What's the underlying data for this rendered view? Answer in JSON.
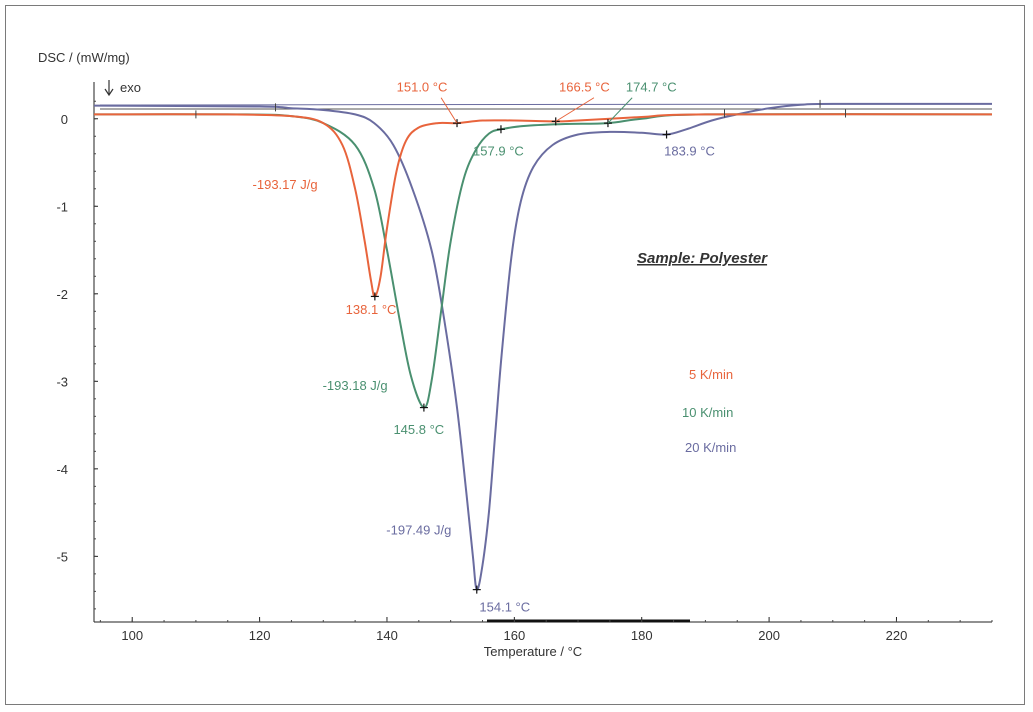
{
  "chart_data": {
    "type": "line",
    "ylabel": "DSC / (mW/mg)",
    "exo_label": "exo",
    "xlabel": "Temperature / °C",
    "xlim": [
      94,
      235
    ],
    "ylim": [
      -5.75,
      0.42
    ],
    "xticks": [
      100,
      120,
      140,
      160,
      180,
      200,
      220
    ],
    "yticks": [
      0,
      -1,
      -2,
      -3,
      -4,
      -5
    ],
    "grid": false,
    "sample_label": "Sample: Polyester",
    "legend": [
      {
        "label": "5 K/min",
        "color": "#e8643c"
      },
      {
        "label": "10 K/min",
        "color": "#4a9070"
      },
      {
        "label": "20 K/min",
        "color": "#6a6ca0"
      }
    ],
    "series": [
      {
        "name": "5 K/min",
        "color": "#e8643c",
        "points": [
          [
            94,
            0.05
          ],
          [
            115,
            0.05
          ],
          [
            125,
            0.03
          ],
          [
            130,
            -0.05
          ],
          [
            133,
            -0.3
          ],
          [
            135,
            -0.8
          ],
          [
            136.5,
            -1.4
          ],
          [
            137.5,
            -1.85
          ],
          [
            138.1,
            -2.03
          ],
          [
            139,
            -1.8
          ],
          [
            140,
            -1.25
          ],
          [
            141.5,
            -0.6
          ],
          [
            143,
            -0.25
          ],
          [
            145,
            -0.1
          ],
          [
            148,
            -0.05
          ],
          [
            151,
            -0.05
          ],
          [
            155,
            -0.02
          ],
          [
            160,
            -0.02
          ],
          [
            166.5,
            -0.03
          ],
          [
            170,
            -0.02
          ],
          [
            180,
            0.02
          ],
          [
            190,
            0.05
          ],
          [
            235,
            0.05
          ]
        ],
        "peak": {
          "x": 138.1,
          "y": -2.03
        },
        "marks": [
          [
            151.0,
            -0.05
          ],
          [
            166.5,
            -0.03
          ]
        ],
        "annotations": [
          {
            "text": "-193.17 J/g",
            "x": 124,
            "y": -0.8
          },
          {
            "text": "138.1 °C",
            "x": 137.5,
            "y": -2.23
          },
          {
            "text": "151.0 °C",
            "x": 145.5,
            "y": 0.31
          },
          {
            "text": "166.5 °C",
            "x": 171,
            "y": 0.31
          }
        ]
      },
      {
        "name": "10 K/min",
        "color": "#4a9070",
        "points": [
          [
            94,
            0.05
          ],
          [
            118,
            0.05
          ],
          [
            125,
            0.03
          ],
          [
            130,
            -0.05
          ],
          [
            135,
            -0.3
          ],
          [
            138,
            -0.8
          ],
          [
            140,
            -1.5
          ],
          [
            142,
            -2.3
          ],
          [
            143.8,
            -2.95
          ],
          [
            145.8,
            -3.3
          ],
          [
            147,
            -3.0
          ],
          [
            148.5,
            -2.2
          ],
          [
            150,
            -1.4
          ],
          [
            152,
            -0.7
          ],
          [
            154,
            -0.35
          ],
          [
            156,
            -0.17
          ],
          [
            157.9,
            -0.12
          ],
          [
            162,
            -0.08
          ],
          [
            168,
            -0.06
          ],
          [
            174.7,
            -0.05
          ],
          [
            180,
            0.0
          ],
          [
            190,
            0.05
          ],
          [
            235,
            0.05
          ]
        ],
        "peak": {
          "x": 145.8,
          "y": -3.3
        },
        "marks": [
          [
            157.9,
            -0.12
          ],
          [
            174.7,
            -0.05
          ]
        ],
        "annotations": [
          {
            "text": "-193.18 J/g",
            "x": 135,
            "y": -3.1
          },
          {
            "text": "145.8 °C",
            "x": 145,
            "y": -3.6
          },
          {
            "text": "157.9 °C",
            "x": 157.5,
            "y": -0.42
          },
          {
            "text": "174.7 °C",
            "x": 181.5,
            "y": 0.31
          }
        ]
      },
      {
        "name": "20 K/min",
        "color": "#6a6ca0",
        "points": [
          [
            94,
            0.15
          ],
          [
            120,
            0.14
          ],
          [
            125,
            0.12
          ],
          [
            130,
            0.1
          ],
          [
            135,
            0.05
          ],
          [
            138,
            -0.05
          ],
          [
            141,
            -0.3
          ],
          [
            144,
            -0.8
          ],
          [
            147,
            -1.5
          ],
          [
            149,
            -2.3
          ],
          [
            151,
            -3.3
          ],
          [
            152.5,
            -4.3
          ],
          [
            153.5,
            -5.0
          ],
          [
            154.1,
            -5.38
          ],
          [
            155,
            -5.1
          ],
          [
            156,
            -4.5
          ],
          [
            157,
            -3.6
          ],
          [
            158,
            -2.7
          ],
          [
            159.5,
            -1.6
          ],
          [
            161,
            -0.95
          ],
          [
            163,
            -0.55
          ],
          [
            166,
            -0.3
          ],
          [
            170,
            -0.18
          ],
          [
            175,
            -0.15
          ],
          [
            180,
            -0.16
          ],
          [
            183.9,
            -0.18
          ],
          [
            187,
            -0.12
          ],
          [
            191,
            -0.02
          ],
          [
            195,
            0.05
          ],
          [
            200,
            0.12
          ],
          [
            205,
            0.16
          ],
          [
            210,
            0.17
          ],
          [
            235,
            0.17
          ]
        ],
        "peak": {
          "x": 154.1,
          "y": -5.38
        },
        "marks": [
          [
            183.9,
            -0.18
          ]
        ],
        "annotations": [
          {
            "text": "-197.49 J/g",
            "x": 145,
            "y": -4.75
          },
          {
            "text": "154.1 °C",
            "x": 158.5,
            "y": -5.63
          },
          {
            "text": "183.9 °C",
            "x": 187.5,
            "y": -0.42
          }
        ]
      }
    ]
  }
}
